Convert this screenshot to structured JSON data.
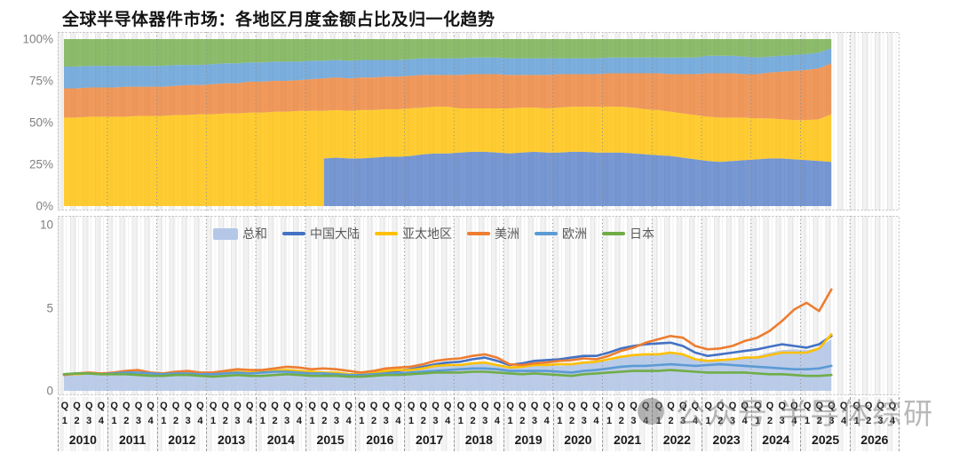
{
  "title": "全球半导体器件市场：各地区月度金额占比及归一化趋势",
  "watermark": {
    "text": "公众号 半导体综研",
    "icon": "circle-logo"
  },
  "colors": {
    "total_fill": "#B4C7E7",
    "china": "#4472C4",
    "apac": "#FFC000",
    "americas": "#ED7D31",
    "europe": "#5B9BD5",
    "japan": "#70AD47",
    "axis_text": "#808080",
    "grid_dash": "#9a9a9a"
  },
  "legend": {
    "items": [
      {
        "key": "total",
        "label": "总和",
        "swatch": "area"
      },
      {
        "key": "china",
        "label": "中国大陆",
        "swatch": "line"
      },
      {
        "key": "apac",
        "label": "亚太地区",
        "swatch": "line"
      },
      {
        "key": "americas",
        "label": "美洲",
        "swatch": "line"
      },
      {
        "key": "europe",
        "label": "欧洲",
        "swatch": "line"
      },
      {
        "key": "japan",
        "label": "日本",
        "swatch": "line"
      }
    ]
  },
  "x_axis": {
    "quarter_prefix": "Q",
    "quarter_digits": [
      "1",
      "2",
      "3",
      "4"
    ],
    "years": [
      "2010",
      "2011",
      "2012",
      "2013",
      "2014",
      "2015",
      "2016",
      "2017",
      "2018",
      "2019",
      "2020",
      "2021",
      "2022",
      "2023",
      "2024",
      "2025",
      "2026"
    ],
    "data_start": "2010Q1",
    "data_end": "2025Q3"
  },
  "chart_data": [
    {
      "type": "area",
      "subtype": "stacked-100-percent",
      "title": "各地区月度金额占比",
      "x_start": "2010Q1",
      "x_end": "2025Q3",
      "x_step": "quarter",
      "ylim": [
        0,
        100
      ],
      "y_ticks": [
        {
          "label": "100%",
          "value": 100
        },
        {
          "label": "75%",
          "value": 75
        },
        {
          "label": "50%",
          "value": 50
        },
        {
          "label": "25%",
          "value": 25
        },
        {
          "label": "0%",
          "value": 0
        }
      ],
      "series": [
        {
          "key": "china",
          "name": "中国大陆",
          "values": [
            0,
            0,
            0,
            0,
            0,
            0,
            0,
            0,
            0,
            0,
            0,
            0,
            0,
            0,
            0,
            0,
            0,
            0,
            0,
            0,
            0,
            28.5,
            29,
            28.5,
            28.5,
            29,
            29.5,
            29.5,
            30,
            31,
            31.5,
            31.5,
            32,
            32.5,
            32.5,
            32,
            31.5,
            32,
            32.5,
            32,
            32,
            32.5,
            32.5,
            32,
            32,
            32,
            31.5,
            31,
            30.5,
            30,
            29,
            28,
            27,
            26.5,
            27,
            27.5,
            28,
            28.5,
            28.5,
            28,
            27.5,
            27,
            26.5
          ]
        },
        {
          "key": "apac",
          "name": "亚太地区",
          "values": [
            53,
            53,
            53.5,
            53.5,
            53.5,
            53.5,
            54,
            54,
            54,
            54.5,
            54.5,
            55,
            55,
            55.5,
            55.5,
            56,
            56,
            56.5,
            56.5,
            57,
            57,
            28.5,
            28.5,
            28.5,
            29,
            28.5,
            28.5,
            28.5,
            28.5,
            28,
            28,
            28,
            26.5,
            26,
            26,
            26.5,
            27,
            27,
            26.5,
            26.5,
            27,
            27,
            27,
            27.5,
            27.5,
            27.5,
            27.5,
            27,
            27,
            26.5,
            26.5,
            26.5,
            26.5,
            26.5,
            26,
            25.5,
            24.5,
            24,
            23.5,
            23.5,
            24,
            25,
            28.5
          ]
        },
        {
          "key": "americas",
          "name": "美洲",
          "values": [
            17.5,
            17.5,
            17.5,
            17.5,
            17.5,
            18,
            17.5,
            17.5,
            17.5,
            17.5,
            18,
            17.5,
            18,
            18,
            18,
            18.5,
            18.5,
            18.5,
            18.5,
            18.5,
            19,
            19.5,
            19.5,
            19.5,
            19.5,
            19.5,
            19.5,
            19.5,
            19.5,
            19.5,
            19,
            19,
            20,
            20.5,
            20.5,
            20.5,
            20,
            19.5,
            19.5,
            20,
            20,
            19.5,
            19.5,
            19.5,
            20,
            20,
            20.5,
            21.5,
            22,
            22.5,
            23.5,
            24.5,
            26,
            26.5,
            26.5,
            26,
            26.5,
            27.5,
            28.5,
            29.5,
            30,
            30.5,
            30.5
          ]
        },
        {
          "key": "europe",
          "name": "欧洲",
          "values": [
            13,
            13,
            13,
            13,
            13,
            12.5,
            12.5,
            12.5,
            12.5,
            12.5,
            12,
            12,
            12,
            12,
            12,
            11.5,
            11.5,
            11.5,
            11.5,
            11,
            11,
            10.5,
            10.5,
            10.5,
            10.5,
            10.5,
            10,
            10,
            10,
            10,
            10,
            10,
            10,
            10,
            10,
            10,
            10,
            10,
            10,
            10,
            9.5,
            9.5,
            9.5,
            9.5,
            9.5,
            9.5,
            9.5,
            9.5,
            9.5,
            10,
            10,
            10,
            10.5,
            10.5,
            10.5,
            10.5,
            10,
            9.5,
            9.5,
            9.5,
            9.5,
            9.5,
            9
          ]
        },
        {
          "key": "japan",
          "name": "日本",
          "values": [
            16.5,
            16.5,
            16,
            16,
            16,
            16,
            16,
            16,
            16,
            15.5,
            15.5,
            15.5,
            15,
            14.5,
            14.5,
            14,
            14,
            13.5,
            13.5,
            13.5,
            13,
            13,
            12.5,
            13,
            12.5,
            12.5,
            12.5,
            12.5,
            12,
            11.5,
            11.5,
            11.5,
            11.5,
            11,
            11,
            11,
            11.5,
            11.5,
            11.5,
            11.5,
            11.5,
            11.5,
            11.5,
            11.5,
            11,
            11,
            11,
            11,
            11,
            11,
            11,
            11,
            10,
            10,
            10,
            10.5,
            11,
            10.5,
            10,
            9.5,
            9,
            8,
            5.5
          ]
        }
      ]
    },
    {
      "type": "line",
      "subtype": "normalized-trend",
      "title": "归一化趋势",
      "x_start": "2010Q1",
      "x_end": "2025Q3",
      "x_step": "quarter",
      "ylim": [
        0,
        10.5
      ],
      "y_ticks": [
        {
          "label": "10",
          "value": 10
        },
        {
          "label": "5",
          "value": 5
        },
        {
          "label": "0",
          "value": 0
        }
      ],
      "series": [
        {
          "key": "total",
          "name": "总和",
          "style": "area",
          "values": [
            1.0,
            1.0,
            1.05,
            1.0,
            1.0,
            1.05,
            1.05,
            1.0,
            0.95,
            1.05,
            1.1,
            1.05,
            1.0,
            1.1,
            1.15,
            1.1,
            1.1,
            1.15,
            1.2,
            1.15,
            1.1,
            1.1,
            1.1,
            1.0,
            1.0,
            1.1,
            1.2,
            1.2,
            1.2,
            1.3,
            1.45,
            1.5,
            1.5,
            1.6,
            1.7,
            1.55,
            1.35,
            1.4,
            1.5,
            1.5,
            1.5,
            1.55,
            1.65,
            1.7,
            1.8,
            2.0,
            2.15,
            2.2,
            2.25,
            2.35,
            2.25,
            1.95,
            1.8,
            1.85,
            1.95,
            2.05,
            2.1,
            2.3,
            2.45,
            2.5,
            2.45,
            2.6,
            3.1
          ]
        },
        {
          "key": "china",
          "name": "中国大陆",
          "style": "line",
          "values": [
            null,
            null,
            null,
            null,
            null,
            null,
            null,
            null,
            null,
            null,
            null,
            null,
            null,
            null,
            null,
            null,
            null,
            null,
            null,
            null,
            null,
            1.0,
            1.0,
            0.95,
            0.95,
            1.05,
            1.15,
            1.2,
            1.3,
            1.45,
            1.6,
            1.7,
            1.75,
            1.9,
            2.0,
            1.8,
            1.55,
            1.65,
            1.8,
            1.85,
            1.9,
            2.0,
            2.1,
            2.1,
            2.3,
            2.55,
            2.7,
            2.8,
            2.85,
            2.9,
            2.7,
            2.3,
            2.1,
            2.2,
            2.3,
            2.4,
            2.5,
            2.65,
            2.8,
            2.7,
            2.6,
            2.8,
            3.3
          ]
        },
        {
          "key": "apac",
          "name": "亚太地区",
          "style": "line",
          "values": [
            1.0,
            1.0,
            1.05,
            1.0,
            1.0,
            1.05,
            1.05,
            1.0,
            1.0,
            1.05,
            1.1,
            1.05,
            1.05,
            1.1,
            1.15,
            1.1,
            1.15,
            1.2,
            1.25,
            1.2,
            1.15,
            1.1,
            1.1,
            1.0,
            1.0,
            1.1,
            1.2,
            1.25,
            1.25,
            1.35,
            1.5,
            1.55,
            1.55,
            1.65,
            1.7,
            1.55,
            1.4,
            1.45,
            1.55,
            1.55,
            1.6,
            1.6,
            1.7,
            1.75,
            1.9,
            2.05,
            2.15,
            2.2,
            2.2,
            2.3,
            2.2,
            1.9,
            1.8,
            1.85,
            1.9,
            2.0,
            2.0,
            2.15,
            2.3,
            2.3,
            2.3,
            2.55,
            3.4
          ]
        },
        {
          "key": "americas",
          "name": "美洲",
          "style": "line",
          "values": [
            0.95,
            1.05,
            1.1,
            1.05,
            1.1,
            1.2,
            1.25,
            1.1,
            1.05,
            1.15,
            1.2,
            1.1,
            1.1,
            1.2,
            1.3,
            1.25,
            1.25,
            1.35,
            1.45,
            1.4,
            1.3,
            1.35,
            1.3,
            1.2,
            1.1,
            1.2,
            1.35,
            1.4,
            1.45,
            1.6,
            1.8,
            1.9,
            1.95,
            2.1,
            2.2,
            2.0,
            1.6,
            1.55,
            1.65,
            1.7,
            1.8,
            1.85,
            1.95,
            1.9,
            2.1,
            2.4,
            2.6,
            2.9,
            3.1,
            3.3,
            3.2,
            2.7,
            2.5,
            2.55,
            2.7,
            3.0,
            3.2,
            3.6,
            4.2,
            4.9,
            5.3,
            4.8,
            6.1
          ]
        },
        {
          "key": "europe",
          "name": "欧洲",
          "style": "line",
          "values": [
            1.0,
            1.05,
            1.05,
            1.0,
            1.05,
            1.1,
            1.1,
            1.05,
            1.0,
            1.05,
            1.05,
            1.0,
            1.0,
            1.05,
            1.1,
            1.05,
            1.1,
            1.15,
            1.15,
            1.1,
            1.05,
            1.05,
            1.0,
            0.95,
            0.95,
            1.0,
            1.05,
            1.05,
            1.1,
            1.15,
            1.2,
            1.25,
            1.3,
            1.35,
            1.35,
            1.3,
            1.2,
            1.2,
            1.2,
            1.2,
            1.15,
            1.1,
            1.2,
            1.25,
            1.35,
            1.45,
            1.5,
            1.5,
            1.55,
            1.6,
            1.55,
            1.5,
            1.55,
            1.6,
            1.55,
            1.5,
            1.45,
            1.4,
            1.35,
            1.3,
            1.3,
            1.35,
            1.5
          ]
        },
        {
          "key": "japan",
          "name": "日本",
          "style": "line",
          "values": [
            1.0,
            1.05,
            1.05,
            1.0,
            1.0,
            1.0,
            0.95,
            0.9,
            0.9,
            0.95,
            0.95,
            0.9,
            0.85,
            0.9,
            0.95,
            0.9,
            0.9,
            0.95,
            1.0,
            0.95,
            0.9,
            0.9,
            0.9,
            0.85,
            0.85,
            0.9,
            0.95,
            0.95,
            1.0,
            1.05,
            1.1,
            1.1,
            1.1,
            1.15,
            1.15,
            1.1,
            1.05,
            1.0,
            1.05,
            1.0,
            0.95,
            0.9,
            1.0,
            1.05,
            1.1,
            1.15,
            1.2,
            1.2,
            1.2,
            1.25,
            1.2,
            1.15,
            1.1,
            1.1,
            1.1,
            1.1,
            1.05,
            1.0,
            1.0,
            0.95,
            0.9,
            0.9,
            0.95
          ]
        }
      ]
    }
  ]
}
